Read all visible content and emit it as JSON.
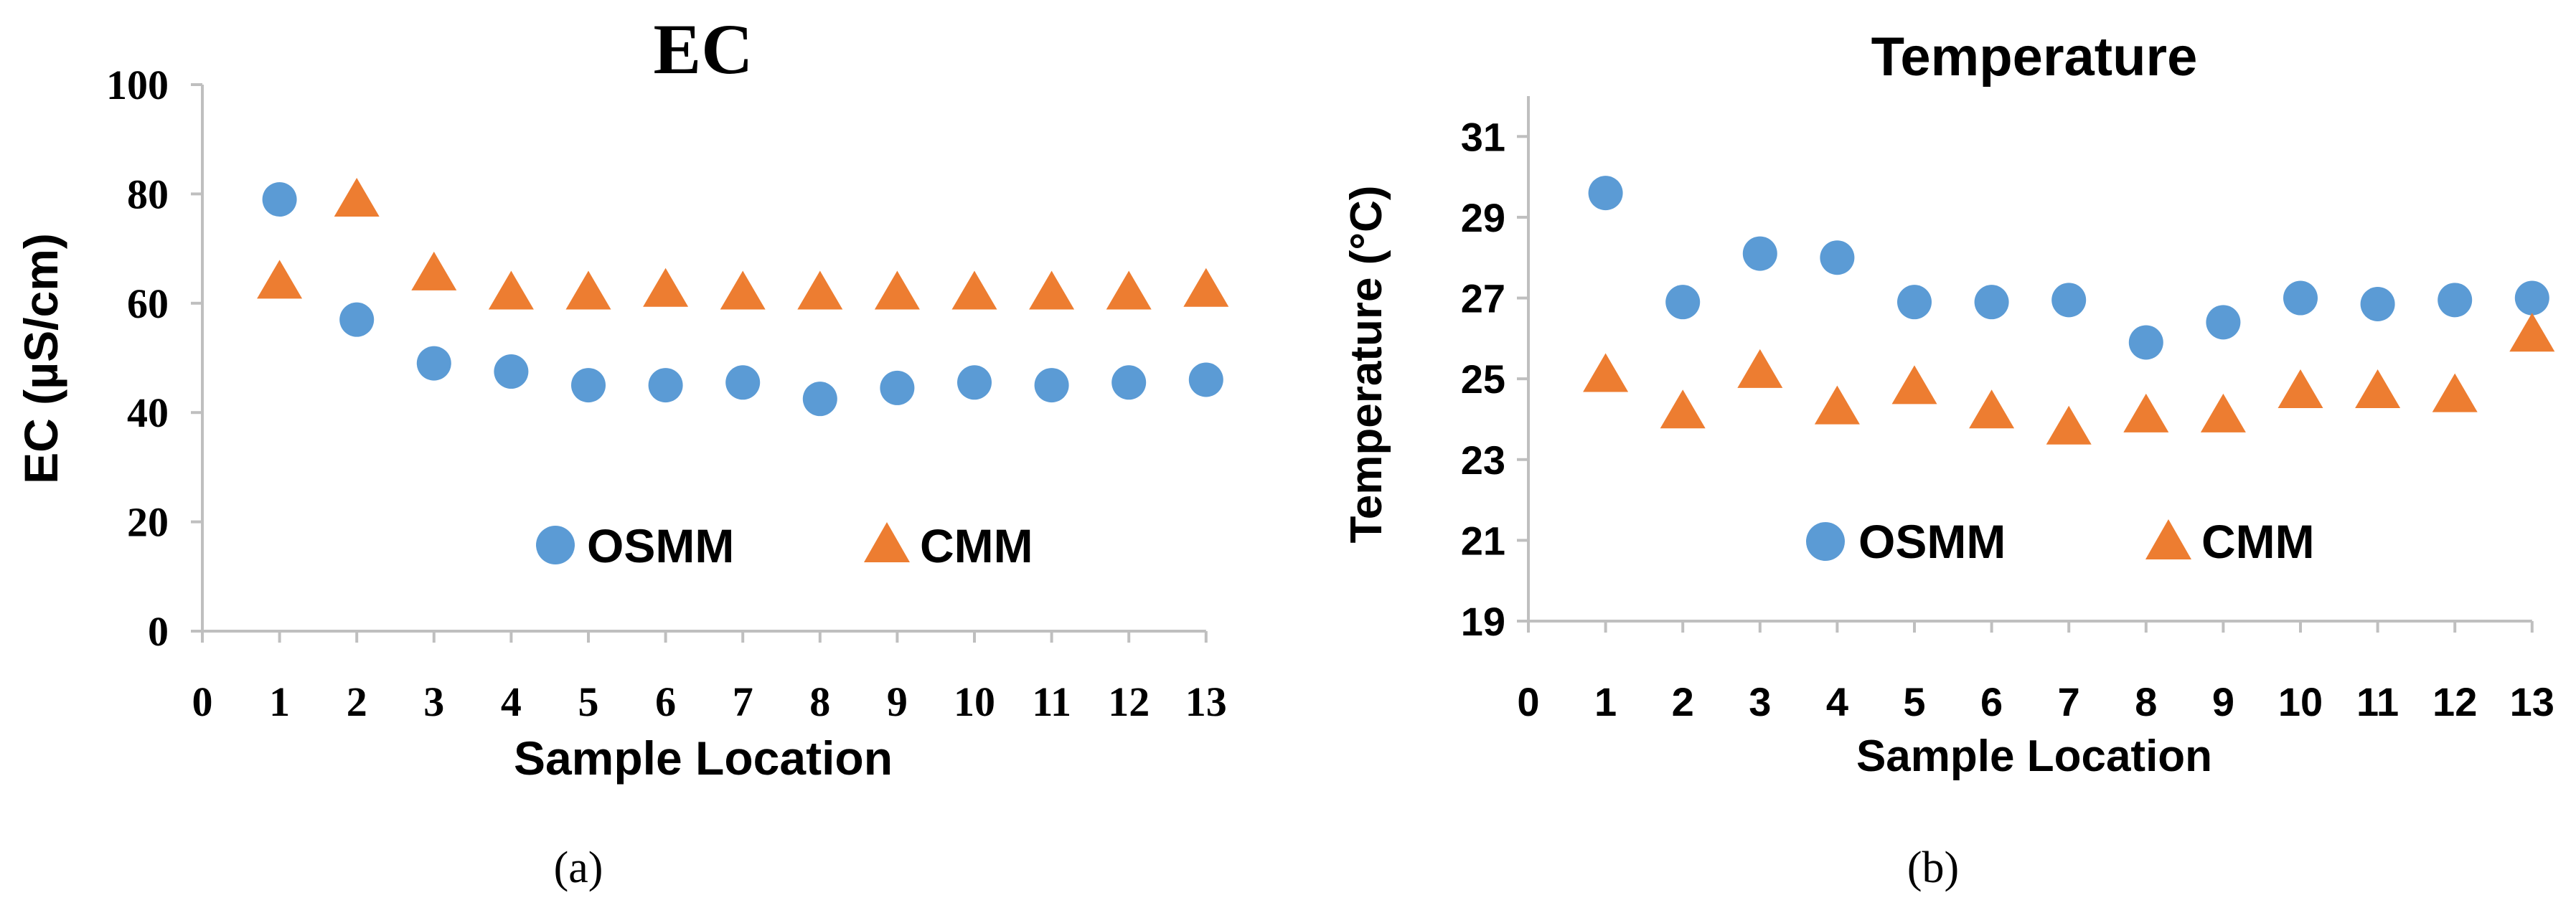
{
  "colors": {
    "OSMM": "#5B9BD5",
    "CMM": "#ED7D31",
    "axis": "#BFBFBF"
  },
  "chart_data": [
    {
      "type": "scatter",
      "title": "EC",
      "xlabel": "Sample Location",
      "ylabel": "EC (µS/cm)",
      "caption": "(a)",
      "x_ticks": [
        "0",
        "1",
        "2",
        "3",
        "4",
        "5",
        "6",
        "7",
        "8",
        "9",
        "10",
        "11",
        "12",
        "13"
      ],
      "y_ticks": [
        "0",
        "20",
        "40",
        "60",
        "80",
        "100"
      ],
      "xlim": [
        0,
        13
      ],
      "ylim": [
        0,
        100
      ],
      "legend_position": "bottom-center",
      "grid": false,
      "series": [
        {
          "name": "OSMM",
          "marker": "circle",
          "x": [
            1,
            2,
            3,
            4,
            5,
            6,
            7,
            8,
            9,
            10,
            11,
            12,
            13
          ],
          "values": [
            79,
            57,
            49,
            47.5,
            45,
            45,
            45.5,
            42.5,
            44.5,
            45.5,
            45,
            45.5,
            46
          ]
        },
        {
          "name": "CMM",
          "marker": "triangle",
          "x": [
            1,
            2,
            3,
            4,
            5,
            6,
            7,
            8,
            9,
            10,
            11,
            12,
            13
          ],
          "values": [
            64,
            79,
            65.5,
            62,
            62,
            62.5,
            62,
            62,
            62,
            62,
            62,
            62,
            62.5
          ]
        }
      ]
    },
    {
      "type": "scatter",
      "title": "Temperature",
      "xlabel": "Sample Location",
      "ylabel": "Temperature (°C)",
      "caption": "(b)",
      "x_ticks": [
        "0",
        "1",
        "2",
        "3",
        "4",
        "5",
        "6",
        "7",
        "8",
        "9",
        "10",
        "11",
        "12",
        "13"
      ],
      "y_ticks": [
        "19",
        "21",
        "23",
        "25",
        "27",
        "29",
        "31"
      ],
      "xlim": [
        0,
        13
      ],
      "ylim": [
        19,
        32
      ],
      "legend_position": "bottom-center",
      "grid": false,
      "series": [
        {
          "name": "OSMM",
          "marker": "circle",
          "x": [
            1,
            2,
            3,
            4,
            5,
            6,
            7,
            8,
            9,
            10,
            11,
            12,
            13
          ],
          "values": [
            29.6,
            26.9,
            28.1,
            28.0,
            26.9,
            26.9,
            26.95,
            25.9,
            26.4,
            27.0,
            26.85,
            26.95,
            27.0
          ]
        },
        {
          "name": "CMM",
          "marker": "triangle",
          "x": [
            1,
            2,
            3,
            4,
            5,
            6,
            7,
            8,
            9,
            10,
            11,
            12,
            13
          ],
          "values": [
            25.1,
            24.2,
            25.2,
            24.3,
            24.8,
            24.2,
            23.8,
            24.1,
            24.1,
            24.7,
            24.7,
            24.6,
            26.1
          ]
        }
      ]
    }
  ]
}
